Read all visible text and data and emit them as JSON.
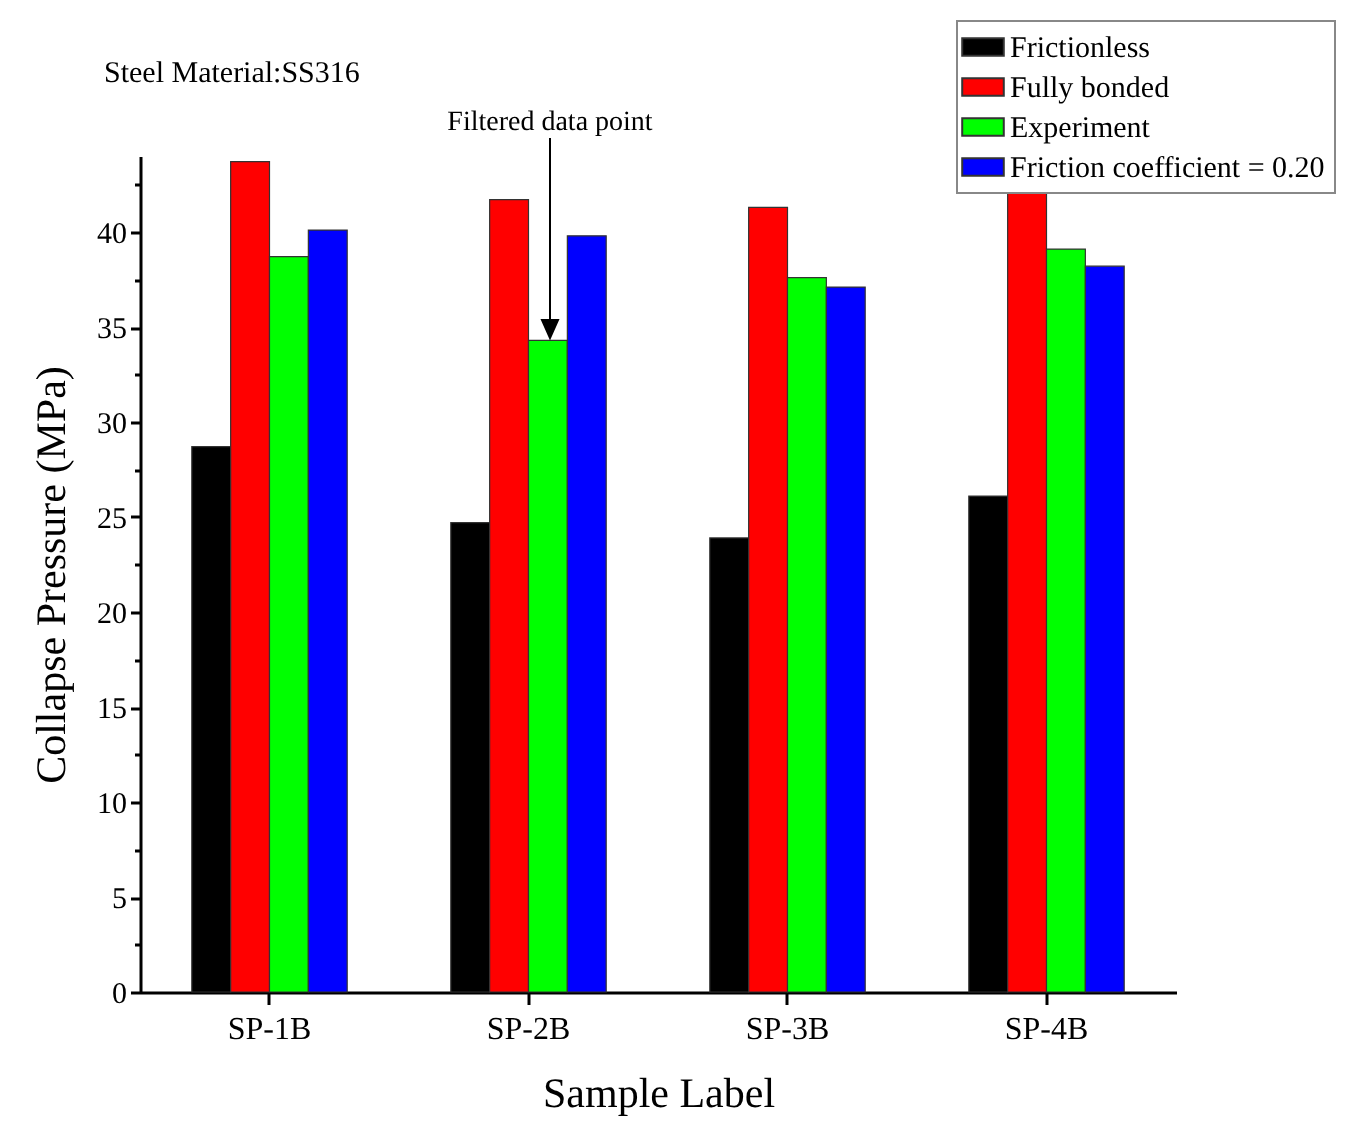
{
  "chart_data": {
    "type": "bar",
    "xlabel": "Sample Label",
    "ylabel": "Collapse Pressure (MPa)",
    "categories": [
      "SP-1B",
      "SP-2B",
      "SP-3B",
      "SP-4B"
    ],
    "series": [
      {
        "name": "Frictionless",
        "color": "#000000",
        "values": [
          28.7,
          24.7,
          23.9,
          26.1
        ]
      },
      {
        "name": "Fully bonded",
        "color": "#ff0000",
        "values": [
          43.7,
          41.7,
          41.3,
          42.2
        ]
      },
      {
        "name": "Experiment",
        "color": "#00ff00",
        "values": [
          38.7,
          34.3,
          37.6,
          39.1
        ]
      },
      {
        "name": "Friction coefficient = 0.20",
        "color": "#0000ff",
        "values": [
          40.1,
          39.8,
          37.1,
          38.2
        ]
      }
    ],
    "ylim": [
      0,
      44
    ],
    "yticks": [
      0,
      {
        "value": 2.5,
        "label": null
      },
      5,
      {
        "value": 7.5,
        "label": null
      },
      10,
      {
        "value": 12.5,
        "label": null
      },
      15,
      {
        "value": 17.5,
        "label": null
      },
      20,
      {
        "value": 22.5,
        "label": null
      },
      25,
      {
        "value": 27.5,
        "label": null
      },
      30,
      {
        "value": 32.5,
        "label": null
      },
      35,
      {
        "value": 37.5,
        "label": null
      },
      40,
      {
        "value": 42.5,
        "label": null
      }
    ],
    "legend": "top right",
    "annotations": [
      "Steel Material:SS316",
      "Filtered data point"
    ]
  }
}
